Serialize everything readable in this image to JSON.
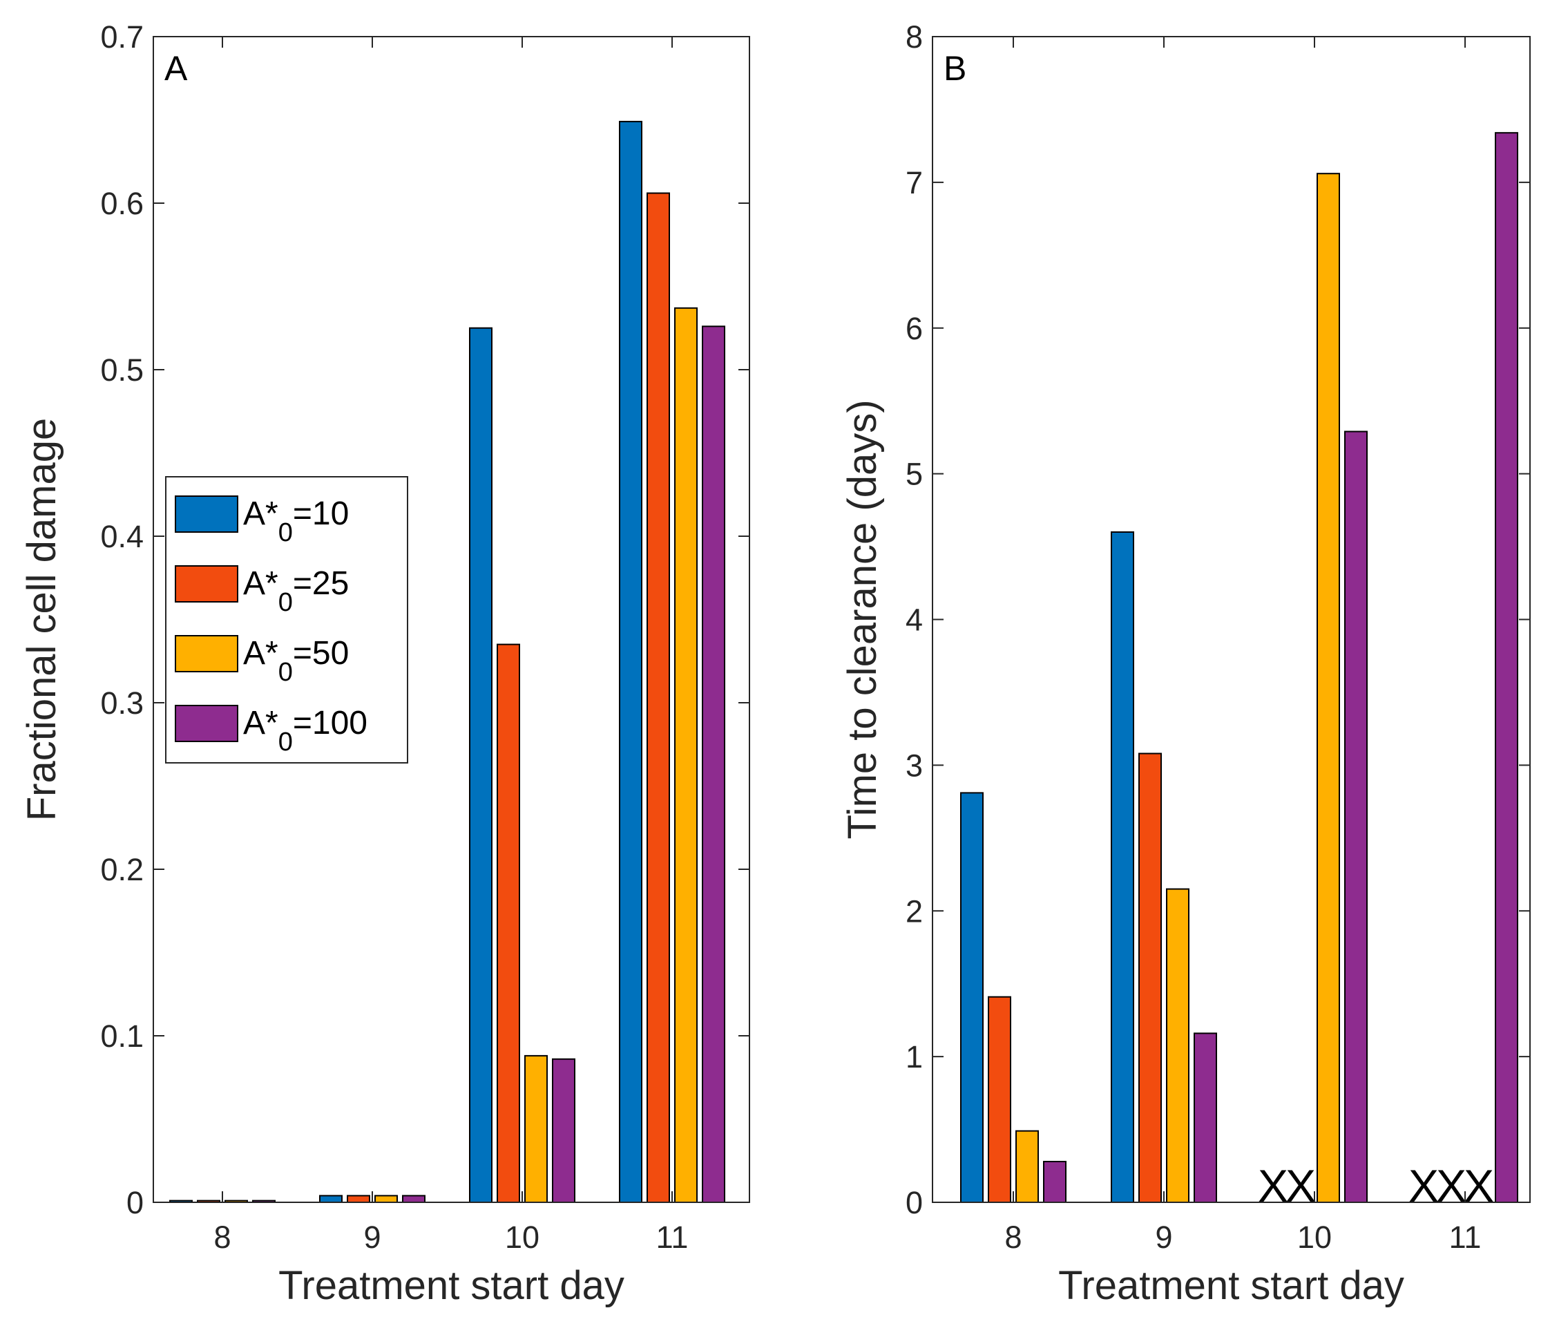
{
  "chart_data": [
    {
      "type": "bar",
      "panel_label": "A",
      "title": "",
      "xlabel": "Treatment start day",
      "ylabel": "Fractional cell damage",
      "categories": [
        "8",
        "9",
        "10",
        "11"
      ],
      "ylim": [
        0,
        0.7
      ],
      "yticks": [
        0,
        0.1,
        0.2,
        0.3,
        0.4,
        0.5,
        0.6,
        0.7
      ],
      "ytick_labels": [
        "0",
        "0.1",
        "0.2",
        "0.3",
        "0.4",
        "0.5",
        "0.6",
        "0.7"
      ],
      "grid": false,
      "legend_position": "center-left",
      "series": [
        {
          "name": "A*0=10",
          "color": "#0072BD",
          "values": [
            0.001,
            0.004,
            0.525,
            0.649
          ]
        },
        {
          "name": "A*0=25",
          "color": "#F24C0F",
          "values": [
            0.001,
            0.004,
            0.335,
            0.606
          ]
        },
        {
          "name": "A*0=50",
          "color": "#FFB000",
          "values": [
            0.001,
            0.004,
            0.088,
            0.537
          ]
        },
        {
          "name": "A*0=100",
          "color": "#8E2C8F",
          "values": [
            0.001,
            0.004,
            0.086,
            0.526
          ]
        }
      ]
    },
    {
      "type": "bar",
      "panel_label": "B",
      "title": "",
      "xlabel": "Treatment start day",
      "ylabel": "Time to clearance (days)",
      "categories": [
        "8",
        "9",
        "10",
        "11"
      ],
      "ylim": [
        0,
        8
      ],
      "yticks": [
        0,
        1,
        2,
        3,
        4,
        5,
        6,
        7,
        8
      ],
      "ytick_labels": [
        "0",
        "1",
        "2",
        "3",
        "4",
        "5",
        "6",
        "7",
        "8"
      ],
      "grid": false,
      "missing_marker": "X",
      "series": [
        {
          "name": "A*0=10",
          "color": "#0072BD",
          "values": [
            2.81,
            4.6,
            null,
            null
          ]
        },
        {
          "name": "A*0=25",
          "color": "#F24C0F",
          "values": [
            1.41,
            3.08,
            null,
            null
          ]
        },
        {
          "name": "A*0=50",
          "color": "#FFB000",
          "values": [
            0.49,
            2.15,
            7.06,
            null
          ]
        },
        {
          "name": "A*0=100",
          "color": "#8E2C8F",
          "values": [
            0.28,
            1.16,
            5.29,
            7.34
          ]
        }
      ]
    }
  ]
}
